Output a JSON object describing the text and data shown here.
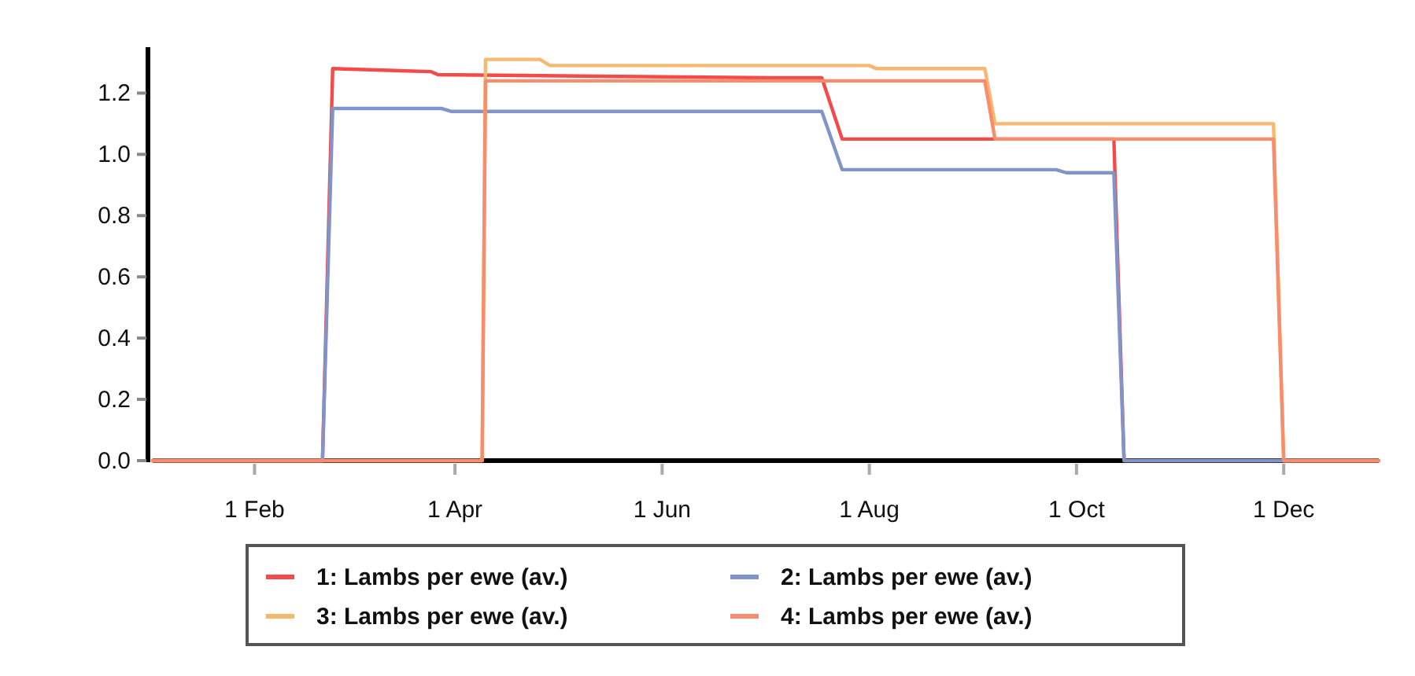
{
  "chart_data": {
    "type": "line",
    "xlim": [
      "--01-02",
      "--12-29"
    ],
    "xticks": [
      {
        "value": "--02-01",
        "label": "1 Feb"
      },
      {
        "value": "--04-01",
        "label": "1 Apr"
      },
      {
        "value": "--06-01",
        "label": "1 Jun"
      },
      {
        "value": "--08-01",
        "label": "1 Aug"
      },
      {
        "value": "--10-01",
        "label": "1 Oct"
      },
      {
        "value": "--12-01",
        "label": "1 Dec"
      }
    ],
    "ylim": [
      0,
      1.35
    ],
    "yticks": [
      {
        "value": 0,
        "label": "0.0"
      },
      {
        "value": 0.2,
        "label": "0.2"
      },
      {
        "value": 0.4,
        "label": "0.4"
      },
      {
        "value": 0.6,
        "label": "0.6"
      },
      {
        "value": 0.8,
        "label": "0.8"
      },
      {
        "value": 1,
        "label": "1.0"
      },
      {
        "value": 1.2,
        "label": "1.2"
      }
    ],
    "grid": false,
    "legend": "bottom",
    "marker": "none",
    "line_style": "solid",
    "series": [
      {
        "name": "1: Lambs per ewe (av.)",
        "color": "#f44a4a",
        "x": [
          "--01-02",
          "--02-21",
          "--02-24",
          "--03-25",
          "--03-27",
          "--07-03",
          "--07-18",
          "--07-24",
          "--10-12",
          "--10-15",
          "--12-29"
        ],
        "values": [
          0,
          0,
          1.28,
          1.27,
          1.26,
          1.25,
          1.25,
          1.05,
          1.05,
          0,
          0
        ]
      },
      {
        "name": "2: Lambs per ewe (av.)",
        "color": "#8094c8",
        "x": [
          "--01-02",
          "--02-21",
          "--02-24",
          "--03-28",
          "--03-31",
          "--07-18",
          "--07-24",
          "--09-25",
          "--09-28",
          "--10-12",
          "--10-15",
          "--12-29"
        ],
        "values": [
          0,
          0,
          1.15,
          1.15,
          1.14,
          1.14,
          0.95,
          0.95,
          0.94,
          0.94,
          0,
          0
        ]
      },
      {
        "name": "3: Lambs per ewe (av.)",
        "color": "#f8b870",
        "x": [
          "--01-02",
          "--04-09",
          "--04-10",
          "--04-26",
          "--04-29",
          "--08-01",
          "--08-03",
          "--09-04",
          "--09-07",
          "--11-28",
          "--12-01",
          "--12-29"
        ],
        "values": [
          0,
          0,
          1.31,
          1.31,
          1.29,
          1.29,
          1.28,
          1.28,
          1.1,
          1.1,
          0,
          0
        ]
      },
      {
        "name": "4: Lambs per ewe (av.)",
        "color": "#f88c6c",
        "x": [
          "--01-02",
          "--04-09",
          "--04-10",
          "--09-04",
          "--09-07",
          "--11-28",
          "--12-01",
          "--12-29"
        ],
        "values": [
          0,
          0,
          1.24,
          1.24,
          1.05,
          1.05,
          0,
          0
        ]
      }
    ]
  }
}
